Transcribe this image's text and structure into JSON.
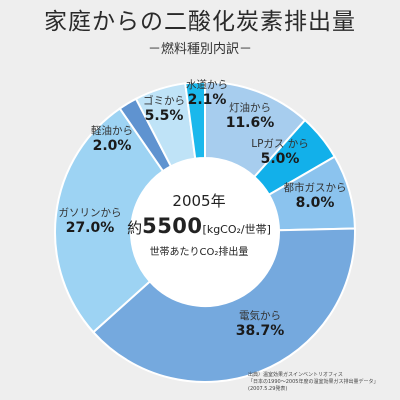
{
  "chart_data": {
    "type": "pie",
    "title": "家庭からの二酸化炭素排出量",
    "subtitle": "－燃料種別内訳－",
    "slices": [
      {
        "label": "灯油から",
        "value": 11.6,
        "value_text": "11.6%",
        "color": "#a7cdee"
      },
      {
        "label": "LPガス から",
        "value": 5.0,
        "value_text": "5.0%",
        "color": "#12b0ea"
      },
      {
        "label": "都市ガスから",
        "value": 8.0,
        "value_text": "8.0%",
        "color": "#8bc3ee"
      },
      {
        "label": "電気から",
        "value": 38.7,
        "value_text": "38.7%",
        "color": "#75a9de"
      },
      {
        "label": "ガソリンから",
        "value": 27.0,
        "value_text": "27.0%",
        "color": "#9dd3f3"
      },
      {
        "label": "軽油から",
        "value": 2.0,
        "value_text": "2.0%",
        "color": "#5f93d0"
      },
      {
        "label": "ゴミから",
        "value": 5.5,
        "value_text": "5.5%",
        "color": "#bfe3f7"
      },
      {
        "label": "水道から",
        "value": 2.1,
        "value_text": "2.1%",
        "color": "#1ab8ec"
      }
    ],
    "center": {
      "year": "2005年",
      "approx": "約",
      "value": "5500",
      "unit": "[kgCO₂/世帯]",
      "caption": "世帯あたりCO₂排出量"
    },
    "source": [
      "出典）温室効果ガスインベントリオフィス",
      "「日本の1990～2005年度の温室効果ガス排出量データ」",
      "(2007.5.29発表)"
    ]
  }
}
